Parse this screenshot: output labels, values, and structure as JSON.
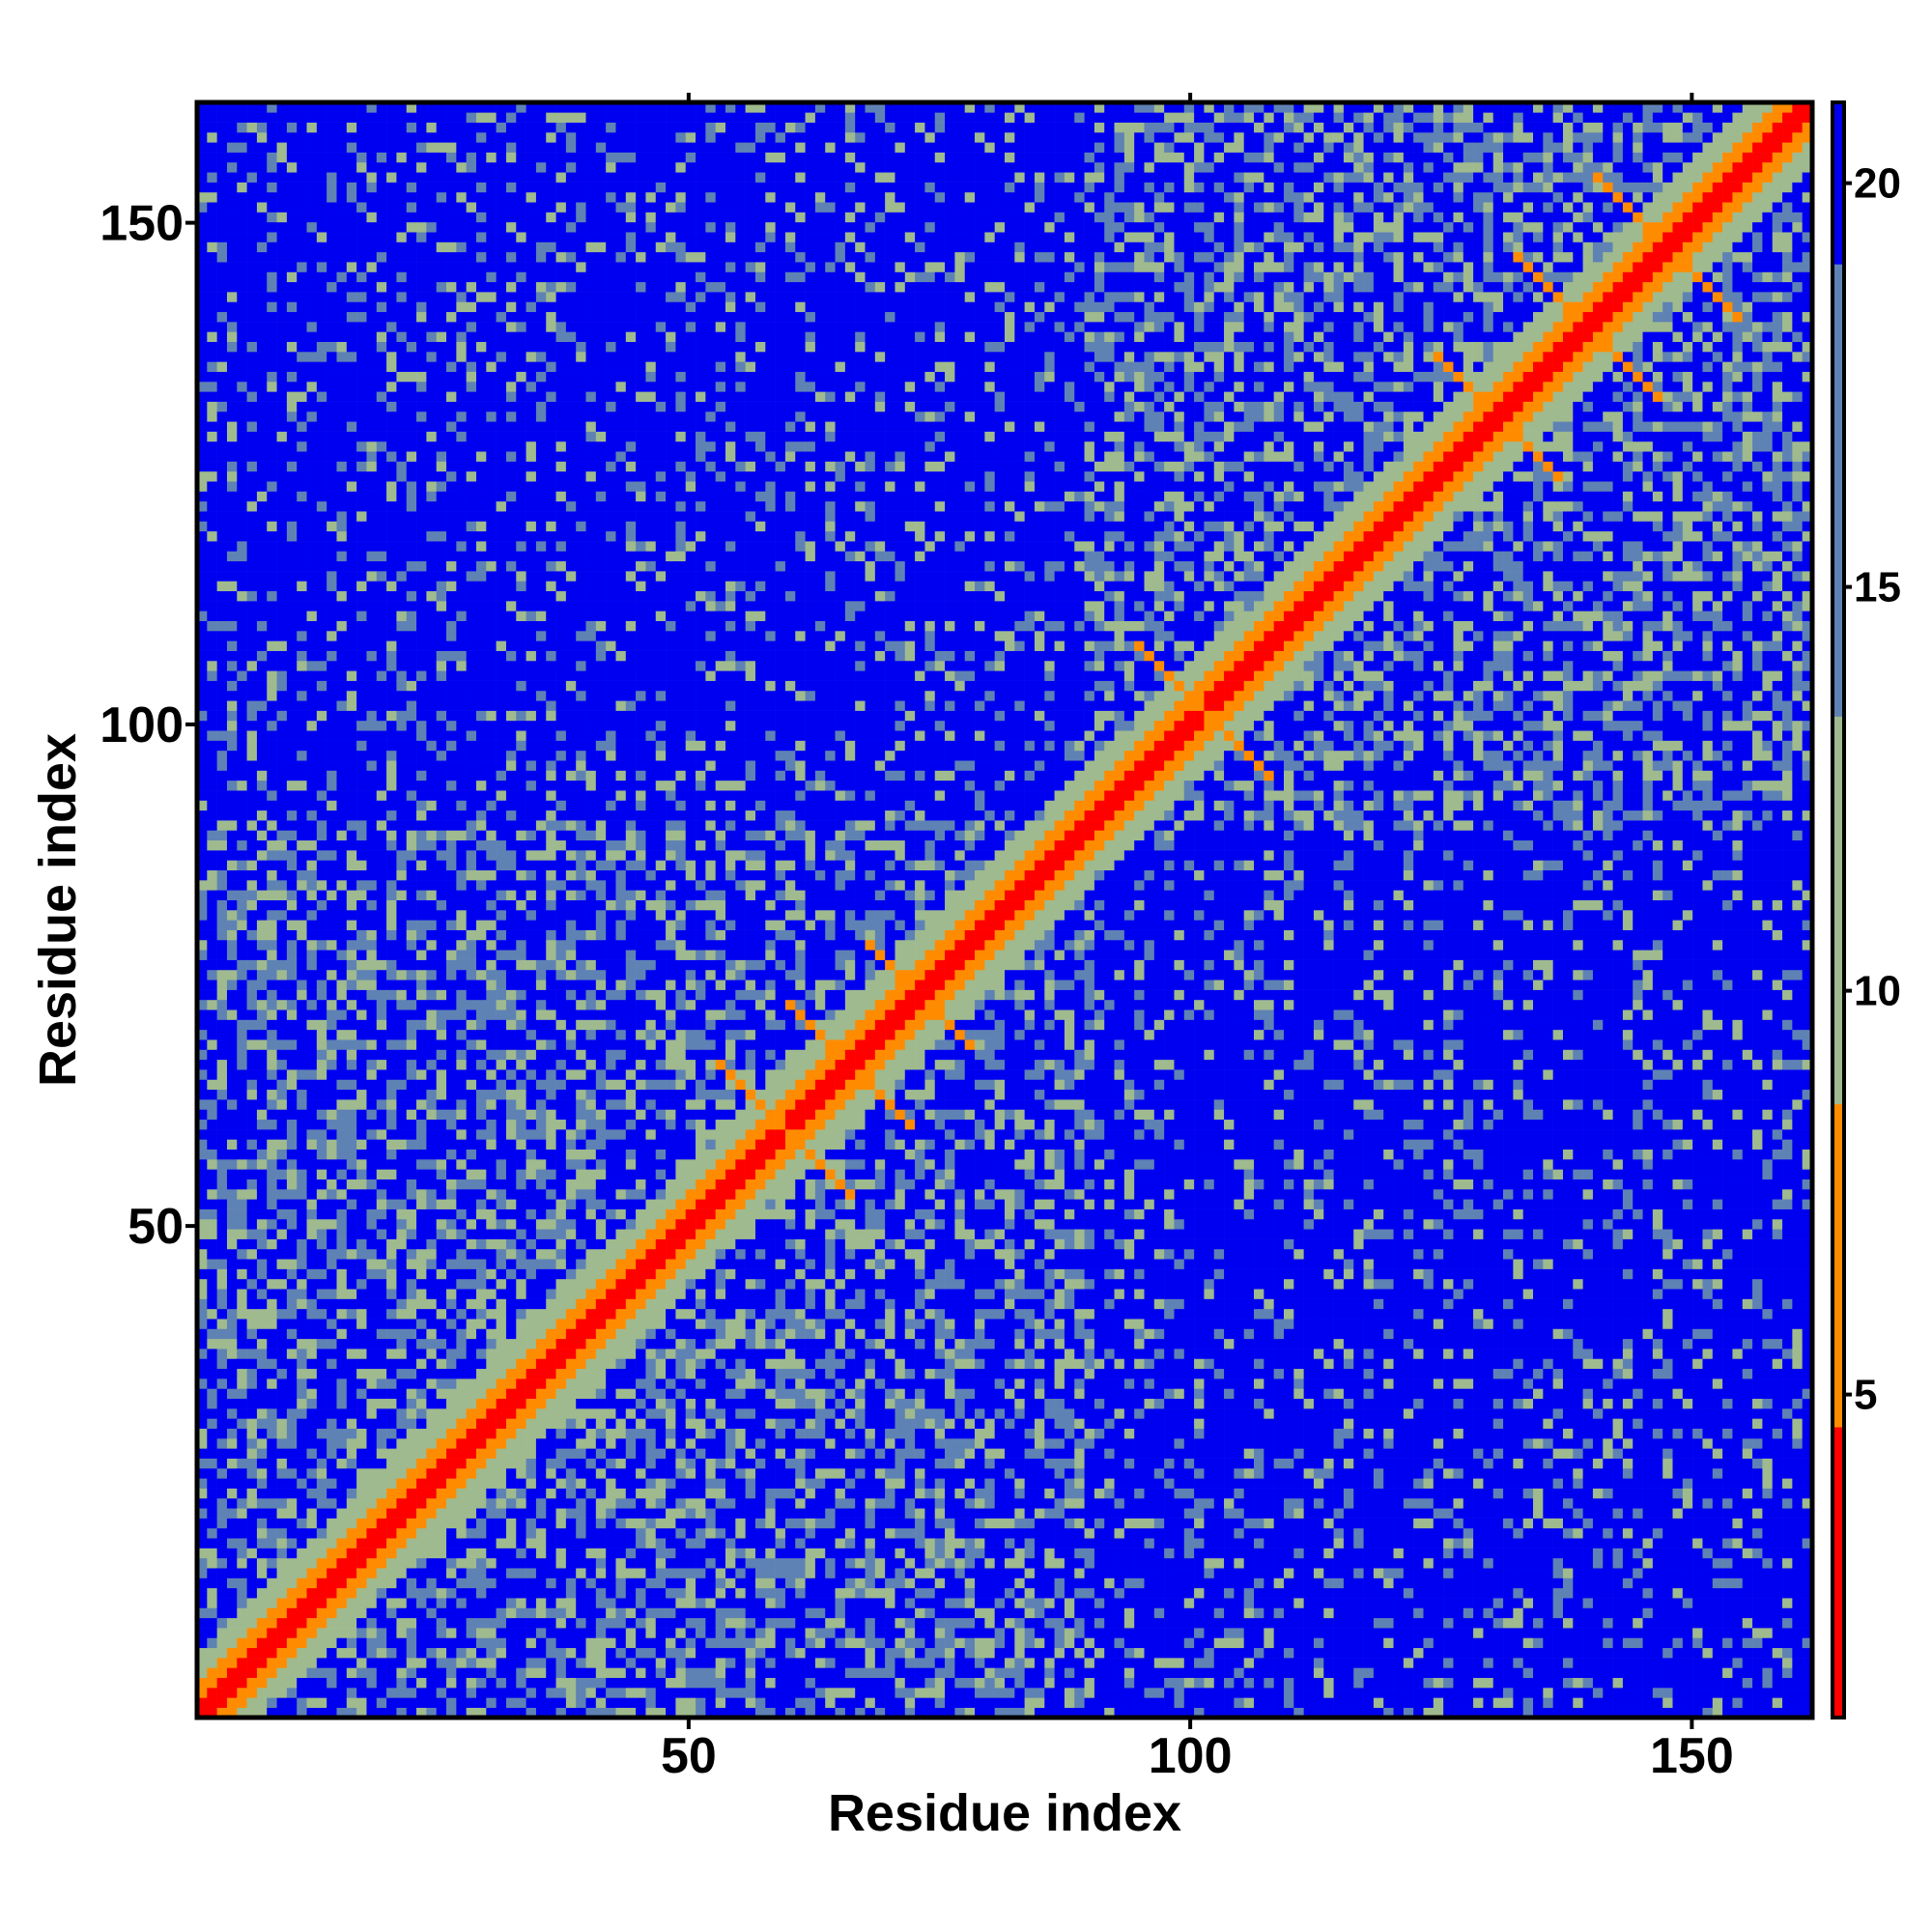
{
  "chart_data": {
    "type": "heatmap",
    "title": "",
    "xlabel": "Residue index",
    "ylabel": "Residue index",
    "xlim": [
      1,
      162
    ],
    "ylim": [
      1,
      162
    ],
    "x_ticks": [
      50,
      100,
      150
    ],
    "y_ticks": [
      50,
      100,
      150
    ],
    "x_tick_labels": [
      "50",
      "100",
      "150"
    ],
    "y_tick_labels": [
      "50",
      "100",
      "150"
    ],
    "colorbar": {
      "range": [
        1,
        21
      ],
      "ticks": [
        5,
        10,
        15,
        20
      ],
      "tick_labels": [
        "5",
        "10",
        "15",
        "20"
      ],
      "colors": [
        "#ff0000",
        "#ff8c00",
        "#9fba8e",
        "#5f82b4",
        "#0000f0"
      ]
    },
    "legend": "colorbar right",
    "grid": false,
    "matrix_summary": {
      "diagonal_value": 1,
      "background_value": 21,
      "domains": [
        {
          "from": 1,
          "to": 90
        },
        {
          "from": 90,
          "to": 162
        }
      ],
      "antiparallel_contacts": [
        {
          "i": 53,
          "j": 66,
          "len": 12
        },
        {
          "i": 60,
          "j": 72,
          "len": 12
        },
        {
          "i": 68,
          "j": 78,
          "len": 10
        },
        {
          "i": 95,
          "j": 108,
          "len": 12
        },
        {
          "i": 125,
          "j": 137,
          "len": 12
        },
        {
          "i": 133,
          "j": 147,
          "len": 12
        },
        {
          "i": 141,
          "j": 155,
          "len": 10
        }
      ]
    }
  }
}
